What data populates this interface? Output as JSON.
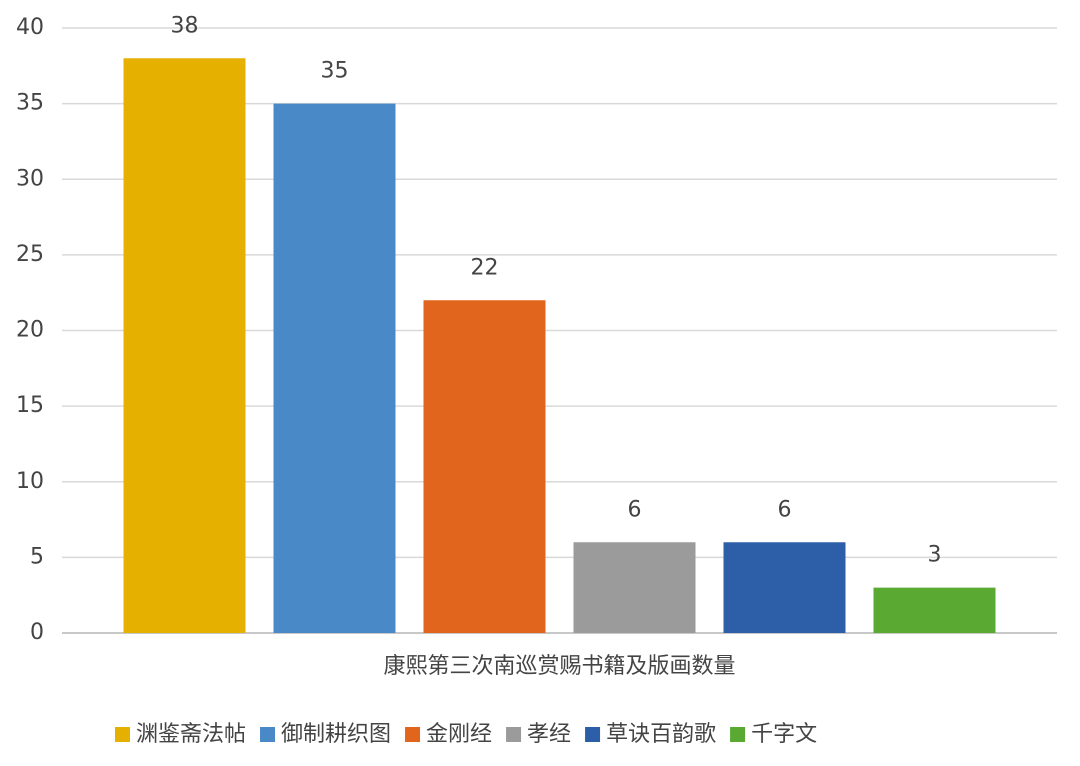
{
  "chart_data": {
    "type": "bar",
    "categories": [
      "康熙第三次南巡赏赐书籍及版画数量"
    ],
    "series": [
      {
        "name": "渊鉴斋法帖",
        "color": "#e6b000",
        "values": [
          38
        ]
      },
      {
        "name": "御制耕织图",
        "color": "#4a89c8",
        "values": [
          35
        ]
      },
      {
        "name": "金刚经",
        "color": "#e2651d",
        "values": [
          22
        ]
      },
      {
        "name": "孝经",
        "color": "#9b9b9b",
        "values": [
          6
        ]
      },
      {
        "name": "草诀百韵歌",
        "color": "#2d5ea8",
        "values": [
          6
        ]
      },
      {
        "name": "千字文",
        "color": "#5aa933",
        "values": [
          3
        ]
      }
    ],
    "ylim": [
      0,
      40
    ],
    "yticks": [
      0,
      5,
      10,
      15,
      20,
      25,
      30,
      35,
      40
    ],
    "grid": true,
    "legend": "bottom"
  }
}
